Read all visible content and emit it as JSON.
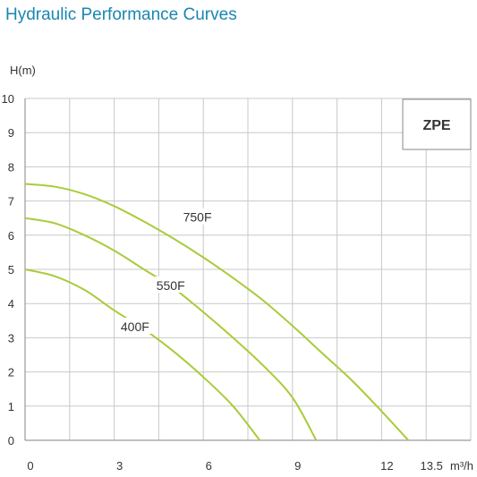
{
  "chart_data": {
    "type": "line",
    "title": "Hydraulic Performance Curves",
    "ylabel": "H(m)",
    "xlabel": "m³/h",
    "model": "ZPE",
    "xlim": [
      0,
      15
    ],
    "ylim": [
      0,
      10
    ],
    "x_ticks": [
      0,
      3,
      6,
      9,
      12,
      13.5
    ],
    "y_ticks": [
      0,
      1,
      2,
      3,
      4,
      5,
      6,
      7,
      8,
      9,
      10
    ],
    "grid": true,
    "series_color": "#a8cc3a",
    "series": [
      {
        "name": "750F",
        "label_at": [
          5.8,
          6.5
        ],
        "points": [
          [
            0,
            7.5
          ],
          [
            1,
            7.42
          ],
          [
            2,
            7.2
          ],
          [
            3,
            6.85
          ],
          [
            4,
            6.4
          ],
          [
            5,
            5.9
          ],
          [
            6,
            5.35
          ],
          [
            7,
            4.75
          ],
          [
            8,
            4.1
          ],
          [
            9,
            3.35
          ],
          [
            10,
            2.55
          ],
          [
            11,
            1.75
          ],
          [
            12,
            0.85
          ],
          [
            12.9,
            0
          ]
        ]
      },
      {
        "name": "550F",
        "label_at": [
          4.9,
          4.5
        ],
        "points": [
          [
            0,
            6.5
          ],
          [
            1,
            6.35
          ],
          [
            2,
            6.0
          ],
          [
            3,
            5.55
          ],
          [
            4,
            5.0
          ],
          [
            5,
            4.45
          ],
          [
            6,
            3.75
          ],
          [
            7,
            3.0
          ],
          [
            8,
            2.2
          ],
          [
            9,
            1.25
          ],
          [
            9.8,
            0
          ]
        ]
      },
      {
        "name": "400F",
        "label_at": [
          3.7,
          3.3
        ],
        "points": [
          [
            0,
            5.0
          ],
          [
            1,
            4.8
          ],
          [
            2,
            4.4
          ],
          [
            3,
            3.8
          ],
          [
            4,
            3.25
          ],
          [
            5,
            2.6
          ],
          [
            6,
            1.85
          ],
          [
            7,
            1.0
          ],
          [
            7.9,
            0
          ]
        ]
      }
    ]
  }
}
